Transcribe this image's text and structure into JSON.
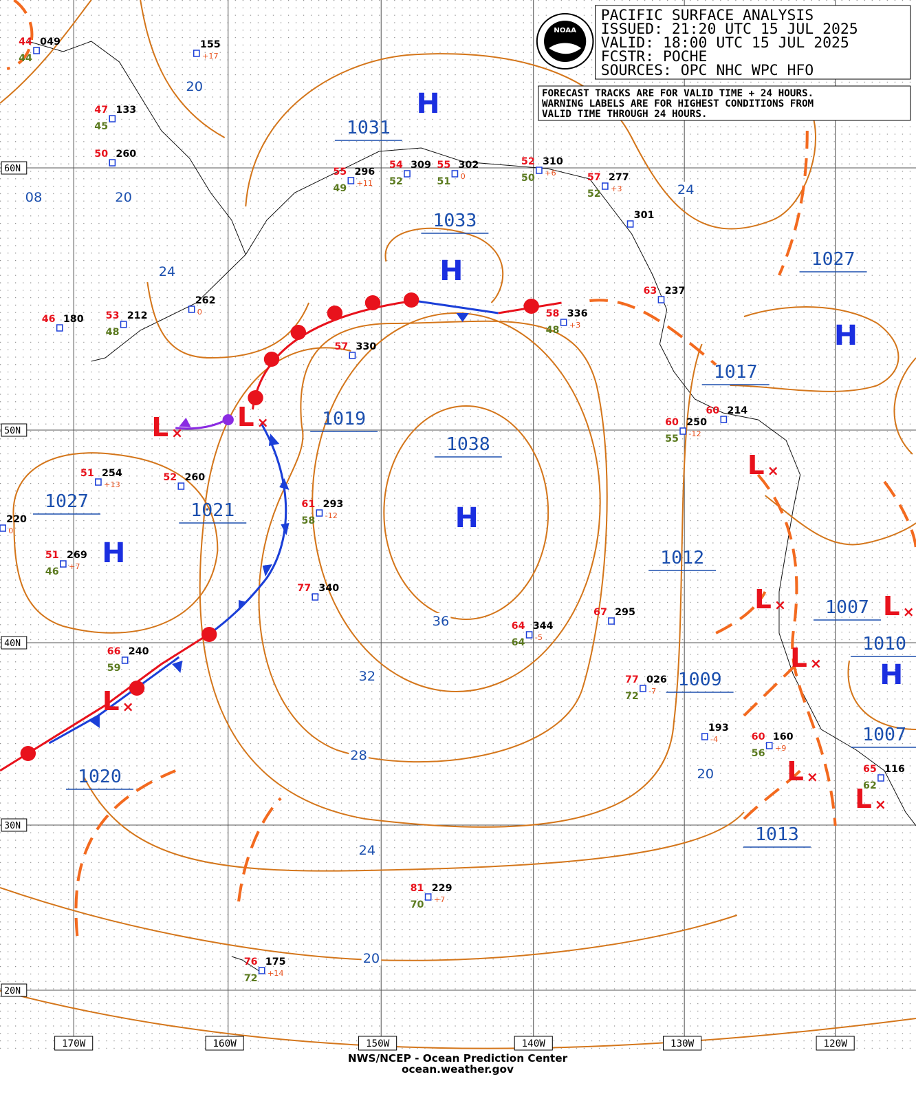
{
  "header": {
    "title": "PACIFIC SURFACE ANALYSIS",
    "issued": "ISSUED:  21:20 UTC 15 JUL 2025",
    "valid": "VALID:   18:00 UTC 15 JUL 2025",
    "forecaster": "FCSTR:   POCHE",
    "sources": "SOURCES:  OPC NHC WPC HFO"
  },
  "logo": "NOAA",
  "note": [
    "FORECAST TRACKS ARE FOR VALID TIME + 24 HOURS.",
    "WARNING LABELS ARE FOR HIGHEST CONDITIONS FROM",
    "VALID TIME THROUGH 24 HOURS."
  ],
  "latitude_labels": [
    "60N",
    "50N",
    "40N",
    "30N",
    "20N"
  ],
  "longitude_labels": [
    "170W",
    "160W",
    "150W",
    "140W",
    "130W",
    "120W"
  ],
  "pressure_symbols": [
    "H",
    "H",
    "H",
    "H",
    "H",
    "H",
    "L",
    "L",
    "L",
    "L",
    "L",
    "L",
    "L",
    "L",
    "L"
  ],
  "pressure_labels": [
    "1031",
    "1033",
    "1038",
    "1027",
    "1027",
    "1019",
    "1021",
    "1020",
    "1017",
    "1012",
    "1007",
    "1010",
    "1009",
    "1007",
    "1013"
  ],
  "isobar_labels": [
    "20",
    "08",
    "20",
    "24",
    "24",
    "36",
    "32",
    "28",
    "24",
    "20",
    "20"
  ],
  "stations": [
    {
      "code": "049",
      "temp": "44",
      "dew": "44"
    },
    {
      "code": "155",
      "tendency": "+17"
    },
    {
      "code": "133",
      "temp": "47",
      "dew": "45"
    },
    {
      "code": "260",
      "temp": "50"
    },
    {
      "code": "296",
      "temp": "55",
      "dew": "49",
      "tendency": "+11"
    },
    {
      "code": "309",
      "temp": "54",
      "dew": "52"
    },
    {
      "code": "302",
      "temp": "55",
      "dew": "51",
      "tendency": "0"
    },
    {
      "code": "310",
      "temp": "52",
      "dew": "50",
      "tendency": "+6"
    },
    {
      "code": "277",
      "temp": "57",
      "dew": "52",
      "tendency": "+3"
    },
    {
      "code": "301"
    },
    {
      "code": "237",
      "temp": "63"
    },
    {
      "code": "262",
      "tendency": "0"
    },
    {
      "code": "180",
      "temp": "46"
    },
    {
      "code": "212",
      "temp": "53",
      "dew": "48"
    },
    {
      "code": "336",
      "temp": "58",
      "dew": "48",
      "tendency": "+3"
    },
    {
      "code": "330",
      "temp": "57"
    },
    {
      "code": "250",
      "temp": "60",
      "dew": "55",
      "tendency": "-12"
    },
    {
      "code": "214",
      "temp": "60"
    },
    {
      "code": "254",
      "temp": "51",
      "tendency": "+13"
    },
    {
      "code": "260",
      "temp": "52"
    },
    {
      "code": "220",
      "tendency": "0"
    },
    {
      "code": "293",
      "temp": "61",
      "dew": "58",
      "tendency": "-12"
    },
    {
      "code": "269",
      "temp": "51",
      "dew": "46",
      "tendency": "+7"
    },
    {
      "code": "340",
      "temp": "77"
    },
    {
      "code": "344",
      "temp": "64",
      "dew": "64",
      "tendency": "-5"
    },
    {
      "code": "295",
      "temp": "67"
    },
    {
      "code": "240",
      "temp": "66",
      "dew": "59"
    },
    {
      "code": "026",
      "temp": "77",
      "dew": "72",
      "tendency": "-7"
    },
    {
      "code": "193",
      "tendency": "-4"
    },
    {
      "code": "160",
      "temp": "60",
      "dew": "56",
      "tendency": "+9"
    },
    {
      "code": "116",
      "temp": "65",
      "dew": "62"
    },
    {
      "code": "229",
      "temp": "81",
      "dew": "70",
      "tendency": "+7"
    },
    {
      "code": "175",
      "temp": "76",
      "dew": "72",
      "tendency": "+14"
    }
  ],
  "footer": [
    "NWS/NCEP - Ocean Prediction Center",
    "ocean.weather.gov"
  ]
}
